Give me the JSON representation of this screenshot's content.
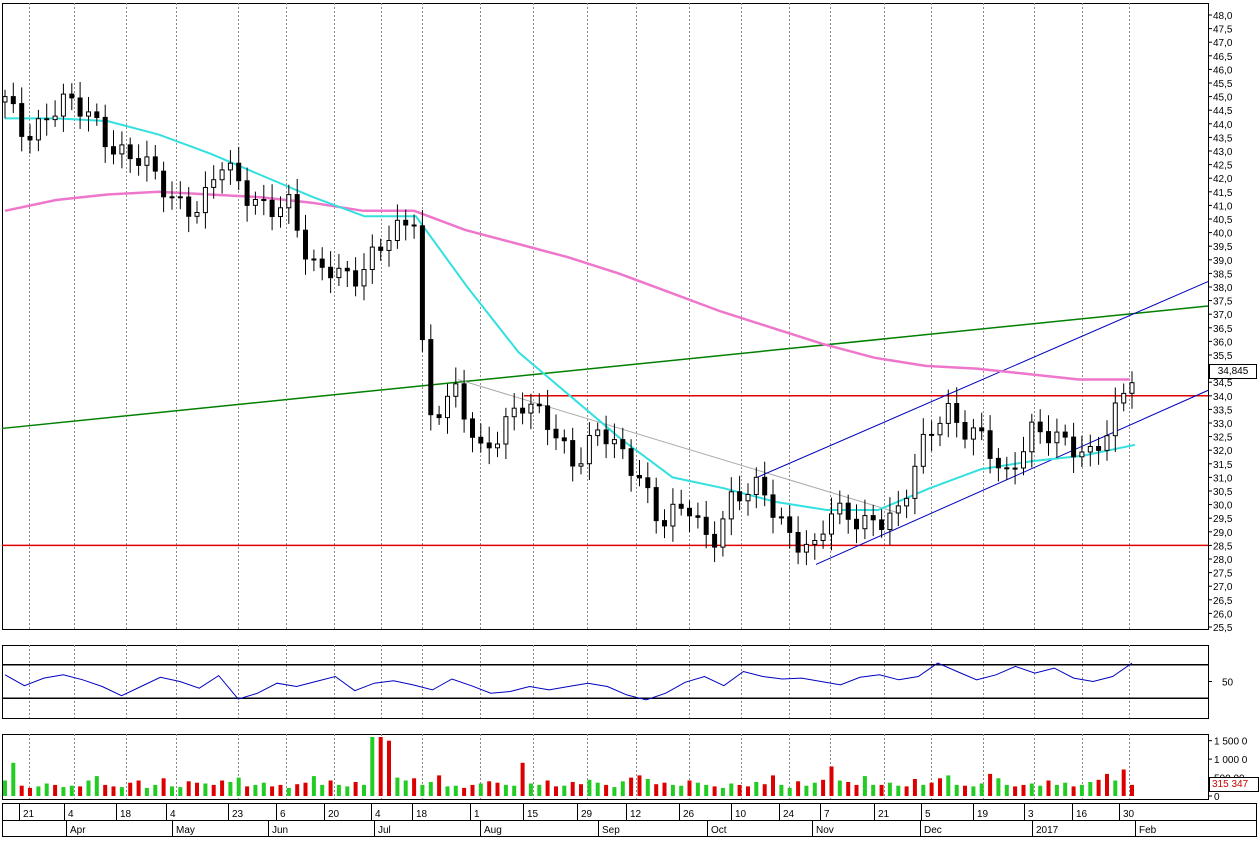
{
  "chart_data": [
    {
      "type": "candlestick",
      "panel": "price",
      "x": [
        "21",
        "4",
        "18",
        "4",
        "23",
        "6",
        "20",
        "4",
        "18",
        "1",
        "15",
        "29",
        "12",
        "26",
        "10",
        "24",
        "7",
        "21",
        "5",
        "19",
        "3",
        "16",
        "30"
      ],
      "months": [
        "Apr",
        "May",
        "Jun",
        "Jul",
        "Aug",
        "Sep",
        "Oct",
        "Nov",
        "Dec",
        "2017",
        "Feb"
      ],
      "ylim": [
        25.5,
        48.0
      ],
      "yticks": [
        "25,5",
        "26,0",
        "26,5",
        "27,0",
        "27,5",
        "28,0",
        "28,5",
        "29,0",
        "29,5",
        "30,0",
        "30,5",
        "31,0",
        "31,5",
        "32,0",
        "32,5",
        "33,0",
        "33,5",
        "34,0",
        "34,5",
        "35,0",
        "35,5",
        "36,0",
        "36,5",
        "37,0",
        "37,5",
        "38,0",
        "38,5",
        "39,0",
        "39,5",
        "40,0",
        "40,5",
        "41,0",
        "41,5",
        "42,0",
        "42,5",
        "43,0",
        "43,5",
        "44,0",
        "44,5",
        "45,0",
        "45,5",
        "46,0",
        "46,5",
        "47,0",
        "47,5",
        "48,0"
      ],
      "last_price": "34,845",
      "horizontal_levels": [
        34.0,
        28.5
      ],
      "series": [
        {
          "name": "",
          "color": "#33e0e0",
          "values": [
            44.2,
            44.2,
            44.1,
            43.6,
            42.9,
            42.1,
            41.3,
            40.6,
            40.6,
            38.0,
            35.6,
            34.0,
            32.4,
            31.0,
            30.6,
            30.1,
            29.8,
            29.8,
            30.6,
            31.3,
            31.6,
            31.8,
            32.2
          ]
        },
        {
          "name": "",
          "color": "#ee77cc",
          "values": [
            40.8,
            41.2,
            41.4,
            41.5,
            41.4,
            41.3,
            41.1,
            40.8,
            40.8,
            40.1,
            39.6,
            39.1,
            38.5,
            37.8,
            37.1,
            36.5,
            35.9,
            35.4,
            35.1,
            35.0,
            34.8,
            34.6,
            34.6
          ]
        }
      ],
      "colors": {
        "support": "#e00000",
        "trend": "#008000",
        "channel": "#0000c0",
        "helper": "#aaaaaa",
        "candle": "#000000"
      }
    },
    {
      "type": "line",
      "panel": "oscillator",
      "ytick": "50",
      "bands": [
        30,
        70
      ],
      "color": "#0000c0",
      "values": [
        58,
        45,
        54,
        58,
        52,
        44,
        33,
        44,
        55,
        50,
        42,
        57,
        29,
        36,
        48,
        44,
        50,
        56,
        39,
        48,
        51,
        46,
        40,
        53,
        45,
        36,
        38,
        44,
        40,
        44,
        48,
        44,
        34,
        28,
        36,
        49,
        56,
        45,
        62,
        56,
        53,
        54,
        50,
        46,
        55,
        58,
        52,
        56,
        72,
        62,
        52,
        58,
        68,
        60,
        66,
        54,
        50,
        56,
        72
      ]
    },
    {
      "type": "bar",
      "panel": "volume",
      "yticks": [
        "1 500 0",
        "1 000 0",
        "500 00",
        "0"
      ],
      "last_volume": "315 347",
      "colors": {
        "up": "#22cc22",
        "down": "#dd0000"
      },
      "values": [
        420,
        900,
        280,
        220,
        260,
        340,
        300,
        240,
        280,
        260,
        420,
        540,
        300,
        260,
        240,
        360,
        420,
        220,
        300,
        480,
        260,
        240,
        400,
        360,
        340,
        300,
        420,
        380,
        500,
        260,
        300,
        360,
        260,
        300,
        220,
        320,
        360,
        540,
        300,
        420,
        300,
        260,
        380,
        300,
        1600,
        1600,
        1500,
        500,
        420,
        480,
        300,
        380,
        560,
        260,
        280,
        220,
        300,
        340,
        400,
        360,
        300,
        280,
        900,
        340,
        300,
        420,
        260,
        280,
        380,
        320,
        440,
        360,
        300,
        240,
        400,
        500,
        560,
        460,
        320,
        360,
        300,
        280,
        420,
        360,
        300,
        260,
        220,
        340,
        300,
        260,
        380,
        320,
        560,
        300,
        220,
        400,
        280,
        360,
        440,
        800,
        420,
        380,
        300,
        540,
        300,
        300,
        360,
        280,
        260,
        460,
        300,
        360,
        480,
        560,
        300,
        280,
        260,
        340,
        600,
        480,
        300,
        260,
        300,
        340,
        280,
        420,
        300,
        360,
        260,
        300,
        380,
        440,
        600,
        420,
        720,
        300
      ]
    }
  ]
}
